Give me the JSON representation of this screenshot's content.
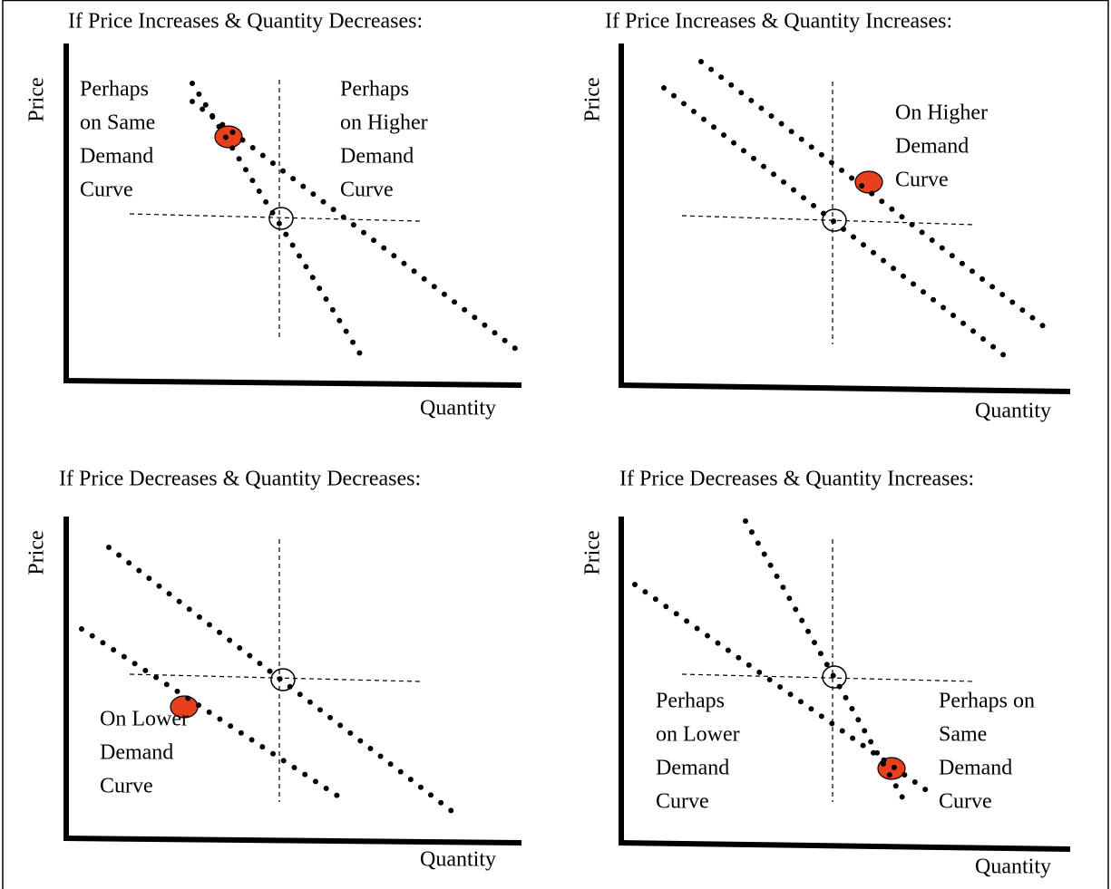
{
  "panels": [
    {
      "title": "If Price Increases & Quantity Decreases:",
      "y_label": "Price",
      "x_label": "Quantity",
      "notes": [
        [
          "Perhaps",
          "on Same",
          "Demand",
          "Curve"
        ],
        [
          "Perhaps",
          "on Higher",
          "Demand",
          "Curve"
        ]
      ]
    },
    {
      "title": "If Price Increases & Quantity Increases:",
      "y_label": "Price",
      "x_label": "Quantity",
      "notes": [
        [
          "On Higher",
          "Demand",
          "Curve"
        ]
      ]
    },
    {
      "title": "If Price Decreases & Quantity Decreases:",
      "y_label": "Price",
      "x_label": "Quantity",
      "notes": [
        [
          "On Lower",
          "Demand",
          "Curve"
        ]
      ]
    },
    {
      "title": "If Price Decreases & Quantity Increases:",
      "y_label": "Price",
      "x_label": "Quantity",
      "notes": [
        [
          "Perhaps",
          "on Lower",
          "Demand",
          "Curve"
        ],
        [
          "Perhaps on",
          "Same",
          "Demand",
          "Curve"
        ]
      ]
    }
  ]
}
